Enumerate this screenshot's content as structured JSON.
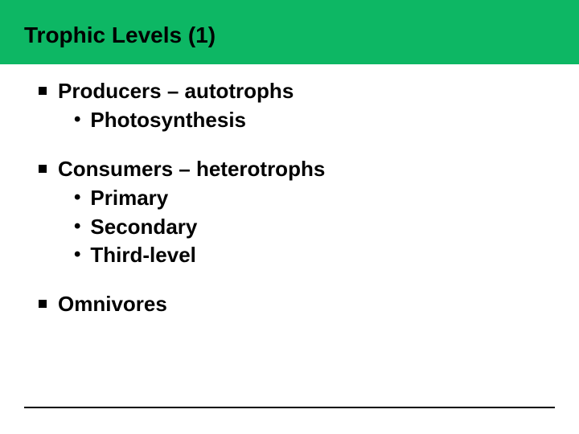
{
  "slide": {
    "title": "Trophic Levels (1)",
    "header_bg": "#0db764",
    "title_color": "#000000",
    "title_fontsize": 28,
    "body_fontsize": 26,
    "body_font_weight": "bold",
    "body_color": "#000000",
    "bullets": [
      {
        "text": "Producers – autotrophs",
        "children": [
          {
            "text": "Photosynthesis"
          }
        ]
      },
      {
        "text": "Consumers – heterotrophs",
        "children": [
          {
            "text": "Primary"
          },
          {
            "text": "Secondary"
          },
          {
            "text": "Third-level"
          }
        ]
      },
      {
        "text": "Omnivores",
        "children": []
      }
    ],
    "level1_marker": "square",
    "level2_marker": "•",
    "footer_line_present": true,
    "background_color": "#ffffff"
  }
}
